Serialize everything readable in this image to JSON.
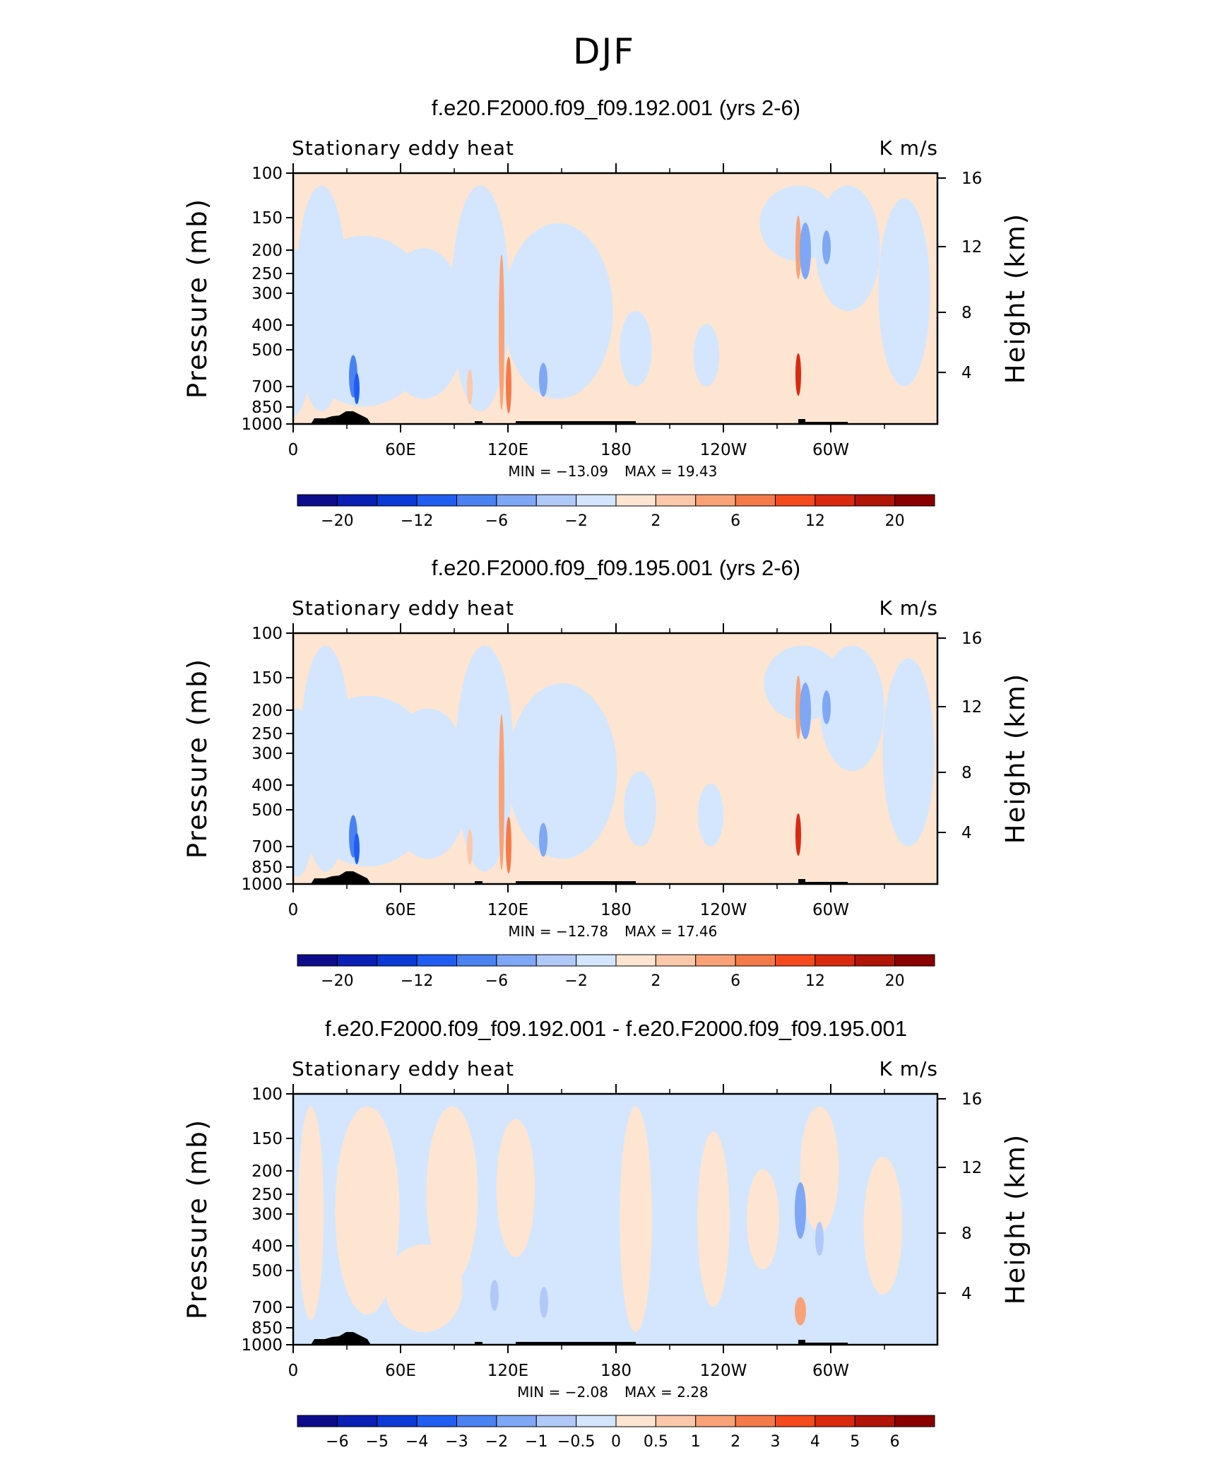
{
  "title": "DJF",
  "colors": {
    "blues": [
      "#0d0d8c",
      "#0a1fb4",
      "#0b3ad6",
      "#1f5ef0",
      "#4a82f2",
      "#7ea7f5",
      "#b1c9f9",
      "#d3e6fd"
    ],
    "reds": [
      "#fde5d2",
      "#fcc8ab",
      "#f9a277",
      "#f57a4a",
      "#f44a1e",
      "#d92a10",
      "#b01508",
      "#8a0000"
    ],
    "topography": "#000000"
  },
  "chart_data": [
    {
      "type": "heatmap",
      "title": "f.e20.F2000.f09_f09.192.001 (yrs 2-6)",
      "subtitle_left": "Stationary eddy heat",
      "subtitle_right": "K m/s",
      "ylabel": "Pressure (mb)",
      "y2label": "Height (km)",
      "yticks": [
        "100",
        "150",
        "200",
        "250",
        "300",
        "400",
        "500",
        "700",
        "850",
        "1000"
      ],
      "y2ticks": [
        "16",
        "12",
        "8",
        "4"
      ],
      "xticks": [
        "0",
        "60E",
        "120E",
        "180",
        "120W",
        "60W"
      ],
      "min_label": "MIN = −13.09",
      "max_label": "MAX = 19.43",
      "min": -13.09,
      "max": 19.43,
      "colorbar_labels": [
        "−20",
        "−12",
        "−6",
        "−2",
        "2",
        "6",
        "12",
        "20"
      ],
      "variant": 0
    },
    {
      "type": "heatmap",
      "title": "f.e20.F2000.f09_f09.195.001 (yrs 2-6)",
      "subtitle_left": "Stationary eddy heat",
      "subtitle_right": "K m/s",
      "ylabel": "Pressure (mb)",
      "y2label": "Height (km)",
      "yticks": [
        "100",
        "150",
        "200",
        "250",
        "300",
        "400",
        "500",
        "700",
        "850",
        "1000"
      ],
      "y2ticks": [
        "16",
        "12",
        "8",
        "4"
      ],
      "xticks": [
        "0",
        "60E",
        "120E",
        "180",
        "120W",
        "60W"
      ],
      "min_label": "MIN = −12.78",
      "max_label": "MAX = 17.46",
      "min": -12.78,
      "max": 17.46,
      "colorbar_labels": [
        "−20",
        "−12",
        "−6",
        "−2",
        "2",
        "6",
        "12",
        "20"
      ],
      "variant": 1
    },
    {
      "type": "heatmap",
      "title": "f.e20.F2000.f09_f09.192.001 - f.e20.F2000.f09_f09.195.001",
      "subtitle_left": "Stationary eddy heat",
      "subtitle_right": "K m/s",
      "ylabel": "Pressure (mb)",
      "y2label": "Height (km)",
      "yticks": [
        "100",
        "150",
        "200",
        "250",
        "300",
        "400",
        "500",
        "700",
        "850",
        "1000"
      ],
      "y2ticks": [
        "16",
        "12",
        "8",
        "4"
      ],
      "xticks": [
        "0",
        "60E",
        "120E",
        "180",
        "120W",
        "60W"
      ],
      "min_label": "MIN = −2.08",
      "max_label": "MAX = 2.28",
      "min": -2.08,
      "max": 2.28,
      "colorbar_labels": [
        "−6",
        "−5",
        "−4",
        "−3",
        "−2",
        "−1",
        "−0.5",
        "0",
        "0.5",
        "1",
        "2",
        "3",
        "4",
        "5",
        "6"
      ],
      "variant": 2
    }
  ]
}
